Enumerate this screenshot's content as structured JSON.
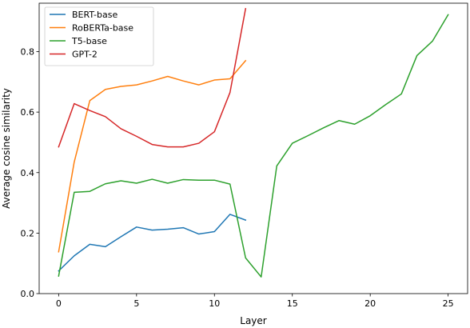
{
  "chart_data": {
    "type": "line",
    "title": "",
    "xlabel": "Layer",
    "ylabel": "Average cosine similarity",
    "xlim": [
      -1.25,
      26.25
    ],
    "ylim": [
      0.0,
      0.96
    ],
    "xticks": [
      0,
      5,
      10,
      15,
      20,
      25
    ],
    "yticks": [
      0.0,
      0.2,
      0.4,
      0.6,
      0.8
    ],
    "ytick_labels": [
      "0.0",
      "0.2",
      "0.4",
      "0.6",
      "0.8"
    ],
    "grid": false,
    "legend_position": "top-left",
    "series": [
      {
        "name": "BERT-base",
        "color": "#1f77b4",
        "x": [
          0,
          1,
          2,
          3,
          4,
          5,
          6,
          7,
          8,
          9,
          10,
          11,
          12
        ],
        "values": [
          0.075,
          0.125,
          0.163,
          0.155,
          0.188,
          0.22,
          0.21,
          0.213,
          0.218,
          0.197,
          0.205,
          0.262,
          0.243
        ]
      },
      {
        "name": "RoBERTa-base",
        "color": "#ff7f0e",
        "x": [
          0,
          1,
          2,
          3,
          4,
          5,
          6,
          7,
          8,
          9,
          10,
          11,
          12
        ],
        "values": [
          0.138,
          0.435,
          0.638,
          0.675,
          0.685,
          0.69,
          0.703,
          0.718,
          0.703,
          0.69,
          0.706,
          0.71,
          0.77
        ]
      },
      {
        "name": "T5-base",
        "color": "#2ca02c",
        "x": [
          0,
          1,
          2,
          3,
          4,
          5,
          6,
          7,
          8,
          9,
          10,
          11,
          12,
          13,
          14,
          15,
          16,
          17,
          18,
          19,
          20,
          21,
          22,
          23,
          24,
          25
        ],
        "values": [
          0.058,
          0.335,
          0.338,
          0.363,
          0.373,
          0.365,
          0.378,
          0.365,
          0.377,
          0.375,
          0.375,
          0.362,
          0.118,
          0.055,
          0.422,
          0.497,
          0.522,
          0.548,
          0.572,
          0.56,
          0.588,
          0.625,
          0.66,
          0.787,
          0.835,
          0.922
        ]
      },
      {
        "name": "GPT-2",
        "color": "#d62728",
        "x": [
          0,
          1,
          2,
          3,
          4,
          5,
          6,
          7,
          8,
          9,
          10,
          11,
          12
        ],
        "values": [
          0.485,
          0.628,
          0.605,
          0.585,
          0.545,
          0.52,
          0.493,
          0.485,
          0.485,
          0.497,
          0.535,
          0.665,
          0.942
        ]
      }
    ]
  }
}
